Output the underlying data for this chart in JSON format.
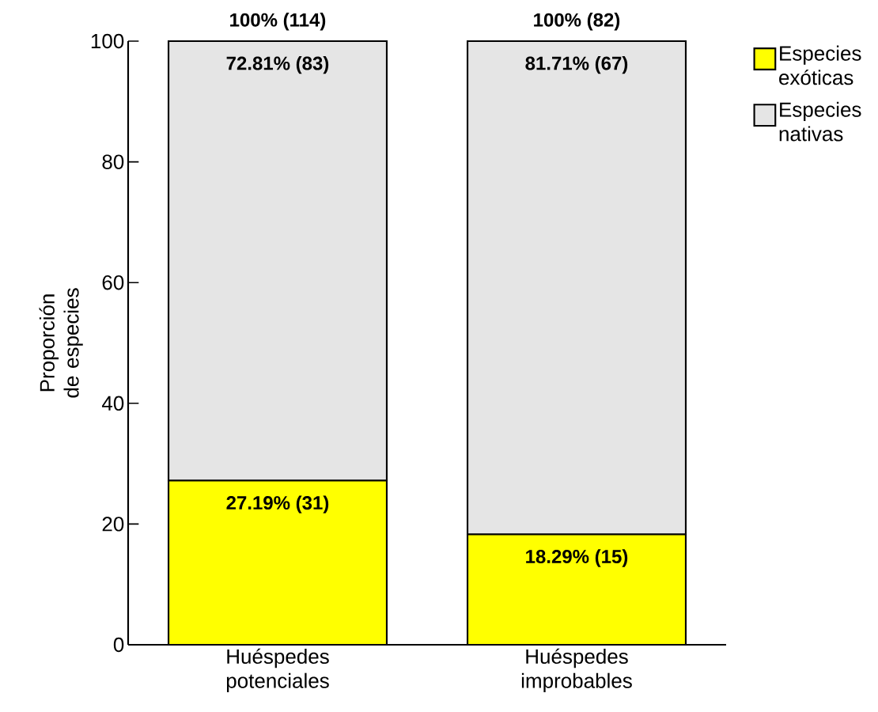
{
  "chart_data": {
    "type": "bar",
    "stacked": true,
    "ylabel": "Proporción de especies",
    "categories": [
      "Huéspedes potenciales",
      "Huéspedes improbables"
    ],
    "series": [
      {
        "name": "Especies exóticas",
        "color": "#ffff00",
        "values": [
          27.19,
          18.29
        ],
        "value_labels": [
          "27.19% (31)",
          "18.29% (15)"
        ]
      },
      {
        "name": "Especies nativas",
        "color": "#e5e5e5",
        "values": [
          72.81,
          81.71
        ],
        "value_labels": [
          "72.81% (83)",
          "81.71% (67)"
        ]
      }
    ],
    "totals": [
      "100% (114)",
      "100% (82)"
    ],
    "ylim": [
      0,
      100
    ],
    "yticks": [
      0,
      20,
      40,
      60,
      80,
      100
    ],
    "grid": false,
    "legend": "top right"
  }
}
